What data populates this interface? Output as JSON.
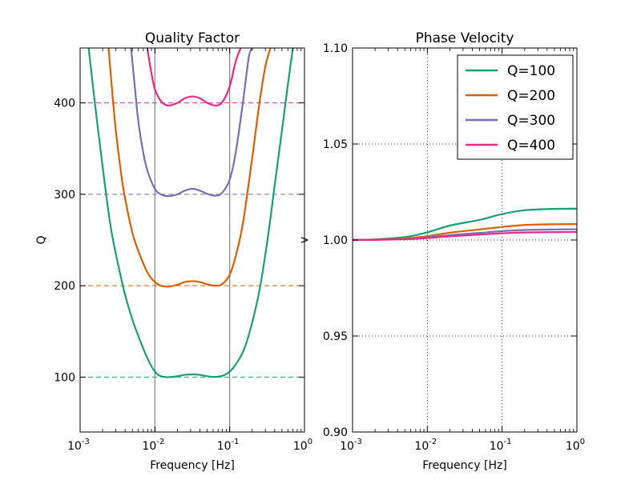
{
  "chart_data": [
    {
      "type": "line",
      "title": "Quality Factor",
      "xlabel": "Frequency [Hz]",
      "ylabel": "Q",
      "xscale": "log",
      "xlim": [
        0.001,
        1
      ],
      "ylim": [
        40,
        460
      ],
      "xticks": [
        {
          "base": "10",
          "exp": "-3",
          "value": 0.001
        },
        {
          "base": "10",
          "exp": "-2",
          "value": 0.01
        },
        {
          "base": "10",
          "exp": "-1",
          "value": 0.1
        },
        {
          "base": "10",
          "exp": "0",
          "value": 1
        }
      ],
      "yticks": [
        "100",
        "200",
        "300",
        "400"
      ],
      "vertical_lines": [
        0.01,
        0.1
      ],
      "grid": false,
      "series": [
        {
          "name": "Q=100",
          "color": "#1b9e77",
          "target": 100,
          "x": [
            0.0013,
            0.0016,
            0.002,
            0.0025,
            0.003,
            0.004,
            0.005,
            0.006,
            0.008,
            0.01,
            0.012,
            0.015,
            0.02,
            0.025,
            0.032,
            0.04,
            0.05,
            0.065,
            0.08,
            0.1,
            0.13,
            0.16,
            0.2,
            0.25,
            0.32,
            0.4,
            0.5,
            0.6,
            0.7
          ],
          "y": [
            460,
            395,
            330,
            270,
            235,
            190,
            163,
            145,
            120,
            106,
            101,
            100,
            101,
            102.5,
            103,
            102.5,
            101,
            100.3,
            101.5,
            106,
            118,
            133,
            160,
            195,
            250,
            310,
            370,
            420,
            460
          ]
        },
        {
          "name": "Q=200",
          "color": "#d95f02",
          "target": 200,
          "x": [
            0.0024,
            0.0027,
            0.003,
            0.0035,
            0.004,
            0.005,
            0.006,
            0.008,
            0.01,
            0.012,
            0.015,
            0.02,
            0.025,
            0.032,
            0.04,
            0.05,
            0.065,
            0.08,
            0.1,
            0.12,
            0.15,
            0.2,
            0.25,
            0.3,
            0.35
          ],
          "y": [
            460,
            410,
            370,
            325,
            295,
            258,
            238,
            214,
            204,
            200,
            199,
            201,
            204,
            205,
            204,
            201.5,
            200,
            202,
            212,
            232,
            268,
            340,
            400,
            440,
            460
          ]
        },
        {
          "name": "Q=300",
          "color": "#7570b3",
          "target": 300,
          "x": [
            0.0048,
            0.0055,
            0.006,
            0.007,
            0.008,
            0.01,
            0.012,
            0.015,
            0.02,
            0.025,
            0.032,
            0.04,
            0.05,
            0.065,
            0.08,
            0.1,
            0.12,
            0.15,
            0.18,
            0.2
          ],
          "y": [
            460,
            410,
            380,
            345,
            325,
            306,
            300,
            298,
            300,
            304,
            306,
            304,
            300.5,
            298.5,
            302,
            316,
            345,
            400,
            450,
            460
          ]
        },
        {
          "name": "Q=400",
          "color": "#e7298a",
          "target": 400,
          "x": [
            0.0079,
            0.009,
            0.01,
            0.012,
            0.015,
            0.02,
            0.025,
            0.032,
            0.04,
            0.05,
            0.065,
            0.08,
            0.1,
            0.12,
            0.14
          ],
          "y": [
            460,
            432,
            415,
            402,
            397,
            400,
            405,
            407,
            405,
            400,
            397,
            401,
            418,
            445,
            460
          ]
        }
      ]
    },
    {
      "type": "line",
      "title": "Phase Velocity",
      "xlabel": "Frequency [Hz]",
      "ylabel": "v",
      "xscale": "log",
      "xlim": [
        0.001,
        1
      ],
      "ylim": [
        0.9,
        1.1
      ],
      "xticks": [
        {
          "base": "10",
          "exp": "-3",
          "value": 0.001
        },
        {
          "base": "10",
          "exp": "-2",
          "value": 0.01
        },
        {
          "base": "10",
          "exp": "-1",
          "value": 0.1
        },
        {
          "base": "10",
          "exp": "0",
          "value": 1
        }
      ],
      "yticks": [
        "0.90",
        "0.95",
        "1.00",
        "1.05",
        "1.10"
      ],
      "grid": true,
      "legend": "top-right",
      "series": [
        {
          "name": "Q=100",
          "color": "#1b9e77",
          "x": [
            0.001,
            0.002,
            0.005,
            0.01,
            0.02,
            0.05,
            0.1,
            0.2,
            0.5,
            1
          ],
          "y": [
            1.0,
            1.0003,
            1.0015,
            1.004,
            1.0075,
            1.0105,
            1.0135,
            1.0155,
            1.0162,
            1.0163
          ]
        },
        {
          "name": "Q=200",
          "color": "#d95f02",
          "x": [
            0.001,
            0.002,
            0.005,
            0.01,
            0.02,
            0.05,
            0.1,
            0.2,
            0.5,
            1
          ],
          "y": [
            1.0,
            1.0002,
            1.0008,
            1.002,
            1.0038,
            1.0055,
            1.0068,
            1.0078,
            1.0082,
            1.0083
          ]
        },
        {
          "name": "Q=300",
          "color": "#7570b3",
          "x": [
            0.001,
            0.002,
            0.005,
            0.01,
            0.02,
            0.05,
            0.1,
            0.2,
            0.5,
            1
          ],
          "y": [
            1.0,
            1.0001,
            1.0005,
            1.0013,
            1.0025,
            1.0037,
            1.0046,
            1.0052,
            1.0055,
            1.0056
          ]
        },
        {
          "name": "Q=400",
          "color": "#e7298a",
          "x": [
            0.001,
            0.002,
            0.005,
            0.01,
            0.02,
            0.05,
            0.1,
            0.2,
            0.5,
            1
          ],
          "y": [
            1.0,
            1.0001,
            1.0004,
            1.001,
            1.0019,
            1.0028,
            1.0035,
            1.0039,
            1.0041,
            1.0042
          ]
        }
      ]
    }
  ]
}
